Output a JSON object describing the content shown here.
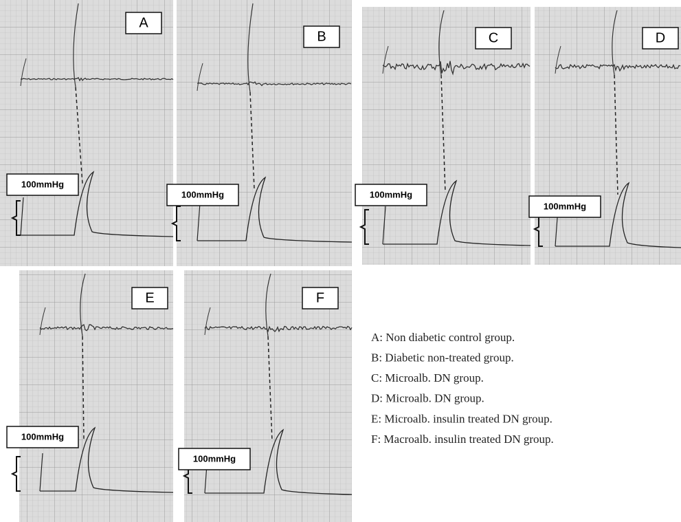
{
  "panels": [
    {
      "label": "A",
      "scale": "100mmHg"
    },
    {
      "label": "B",
      "scale": "100mmHg"
    },
    {
      "label": "C",
      "scale": "100mmHg"
    },
    {
      "label": "D",
      "scale": "100mmHg"
    },
    {
      "label": "E",
      "scale": "100mmHg"
    },
    {
      "label": "F",
      "scale": "100mmHg"
    }
  ],
  "legend": [
    "A: Non diabetic control group.",
    "B: Diabetic non-treated group.",
    "C: Microalb. DN group.",
    "D: Microalb. DN group.",
    "E: Microalb. insulin treated DN group.",
    "F: Macroalb. insulin treated DN group."
  ]
}
